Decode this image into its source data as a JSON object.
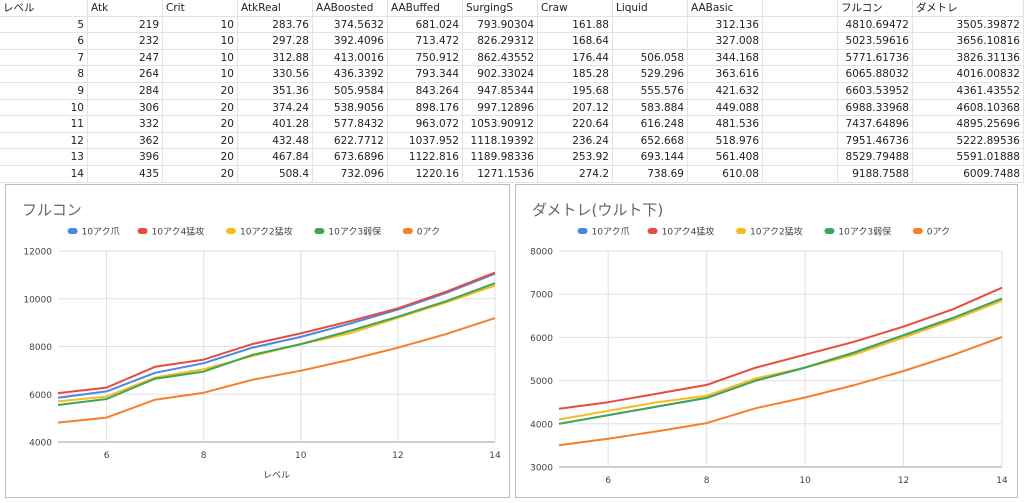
{
  "sheet": {
    "headers": [
      "レベル",
      "Atk",
      "Crit",
      "AtkReal",
      "AABoosted",
      "AABuffed",
      "SurgingS",
      "Craw",
      "Liquid",
      "AABasic",
      "",
      "フルコン",
      "ダメトレ"
    ],
    "rows": [
      [
        "5",
        "219",
        "10",
        "283.76",
        "374.5632",
        "681.024",
        "793.90304",
        "161.88",
        "",
        "312.136",
        "",
        "4810.69472",
        "3505.39872"
      ],
      [
        "6",
        "232",
        "10",
        "297.28",
        "392.4096",
        "713.472",
        "826.29312",
        "168.64",
        "",
        "327.008",
        "",
        "5023.59616",
        "3656.10816"
      ],
      [
        "7",
        "247",
        "10",
        "312.88",
        "413.0016",
        "750.912",
        "862.43552",
        "176.44",
        "506.058",
        "344.168",
        "",
        "5771.61736",
        "3826.31136"
      ],
      [
        "8",
        "264",
        "10",
        "330.56",
        "436.3392",
        "793.344",
        "902.33024",
        "185.28",
        "529.296",
        "363.616",
        "",
        "6065.88032",
        "4016.00832"
      ],
      [
        "9",
        "284",
        "20",
        "351.36",
        "505.9584",
        "843.264",
        "947.85344",
        "195.68",
        "555.576",
        "421.632",
        "",
        "6603.53952",
        "4361.43552"
      ],
      [
        "10",
        "306",
        "20",
        "374.24",
        "538.9056",
        "898.176",
        "997.12896",
        "207.12",
        "583.884",
        "449.088",
        "",
        "6988.33968",
        "4608.10368"
      ],
      [
        "11",
        "332",
        "20",
        "401.28",
        "577.8432",
        "963.072",
        "1053.90912",
        "220.64",
        "616.248",
        "481.536",
        "",
        "7437.64896",
        "4895.25696"
      ],
      [
        "12",
        "362",
        "20",
        "432.48",
        "622.7712",
        "1037.952",
        "1118.19392",
        "236.24",
        "652.668",
        "518.976",
        "",
        "7951.46736",
        "5222.89536"
      ],
      [
        "13",
        "396",
        "20",
        "467.84",
        "673.6896",
        "1122.816",
        "1189.98336",
        "253.92",
        "693.144",
        "561.408",
        "",
        "8529.79488",
        "5591.01888"
      ],
      [
        "14",
        "435",
        "20",
        "508.4",
        "732.096",
        "1220.16",
        "1271.1536",
        "274.2",
        "738.69",
        "610.08",
        "",
        "9188.7588",
        "6009.7488"
      ]
    ]
  },
  "series_colors": [
    "#4a86e8",
    "#e94b3c",
    "#f6bc1c",
    "#3ea655",
    "#fa7d28"
  ],
  "chart_data": [
    {
      "type": "line",
      "title": "フルコン",
      "xlabel": "レベル",
      "ylabel": "",
      "x": [
        5,
        6,
        7,
        8,
        9,
        10,
        11,
        12,
        13,
        14
      ],
      "xlim": [
        5,
        14
      ],
      "xticks": [
        6,
        8,
        10,
        12,
        14
      ],
      "ylim": [
        4000,
        12000
      ],
      "yticks": [
        4000,
        6000,
        8000,
        10000,
        12000
      ],
      "legend": "top",
      "grid": true,
      "series": [
        {
          "name": "10アク爪",
          "values": [
            5850,
            6120,
            6900,
            7300,
            7950,
            8400,
            8950,
            9550,
            10250,
            11050
          ]
        },
        {
          "name": "10アク4猛攻",
          "values": [
            6050,
            6280,
            7150,
            7450,
            8100,
            8550,
            9050,
            9600,
            10300,
            11100
          ]
        },
        {
          "name": "10アク2猛攻",
          "values": [
            5700,
            5900,
            6700,
            7050,
            7600,
            8100,
            8550,
            9200,
            9850,
            10550
          ]
        },
        {
          "name": "10アク3弱保",
          "values": [
            5550,
            5800,
            6650,
            6950,
            7650,
            8100,
            8650,
            9250,
            9900,
            10650
          ]
        },
        {
          "name": "0アク",
          "values": [
            4810.69,
            5023.6,
            5771.62,
            6065.88,
            6603.54,
            6988.34,
            7437.65,
            7951.47,
            8529.79,
            9188.76
          ]
        }
      ]
    },
    {
      "type": "line",
      "title": "ダメトレ(ウルト下)",
      "xlabel": "",
      "ylabel": "",
      "x": [
        5,
        6,
        7,
        8,
        9,
        10,
        11,
        12,
        13,
        14
      ],
      "xlim": [
        5,
        14
      ],
      "xticks": [
        6,
        8,
        10,
        12,
        14
      ],
      "ylim": [
        3000,
        8000
      ],
      "yticks": [
        3000,
        4000,
        5000,
        6000,
        7000,
        8000
      ],
      "legend": "top",
      "grid": true,
      "series": [
        {
          "name": "10アク爪",
          "values": [
            4000,
            4200,
            4400,
            4600,
            5000,
            5300,
            5650,
            6050,
            6450,
            6900
          ]
        },
        {
          "name": "10アク4猛攻",
          "values": [
            4350,
            4500,
            4700,
            4900,
            5300,
            5600,
            5900,
            6250,
            6650,
            7150
          ]
        },
        {
          "name": "10アク2猛攻",
          "values": [
            4100,
            4300,
            4500,
            4650,
            5050,
            5300,
            5600,
            6000,
            6400,
            6850
          ]
        },
        {
          "name": "10アク3弱保",
          "values": [
            4000,
            4200,
            4400,
            4600,
            5000,
            5300,
            5650,
            6050,
            6450,
            6900
          ]
        },
        {
          "name": "0アク",
          "values": [
            3505.4,
            3656.11,
            3826.31,
            4016.01,
            4361.44,
            4608.1,
            4895.26,
            5222.9,
            5591.02,
            6009.75
          ]
        }
      ]
    }
  ]
}
